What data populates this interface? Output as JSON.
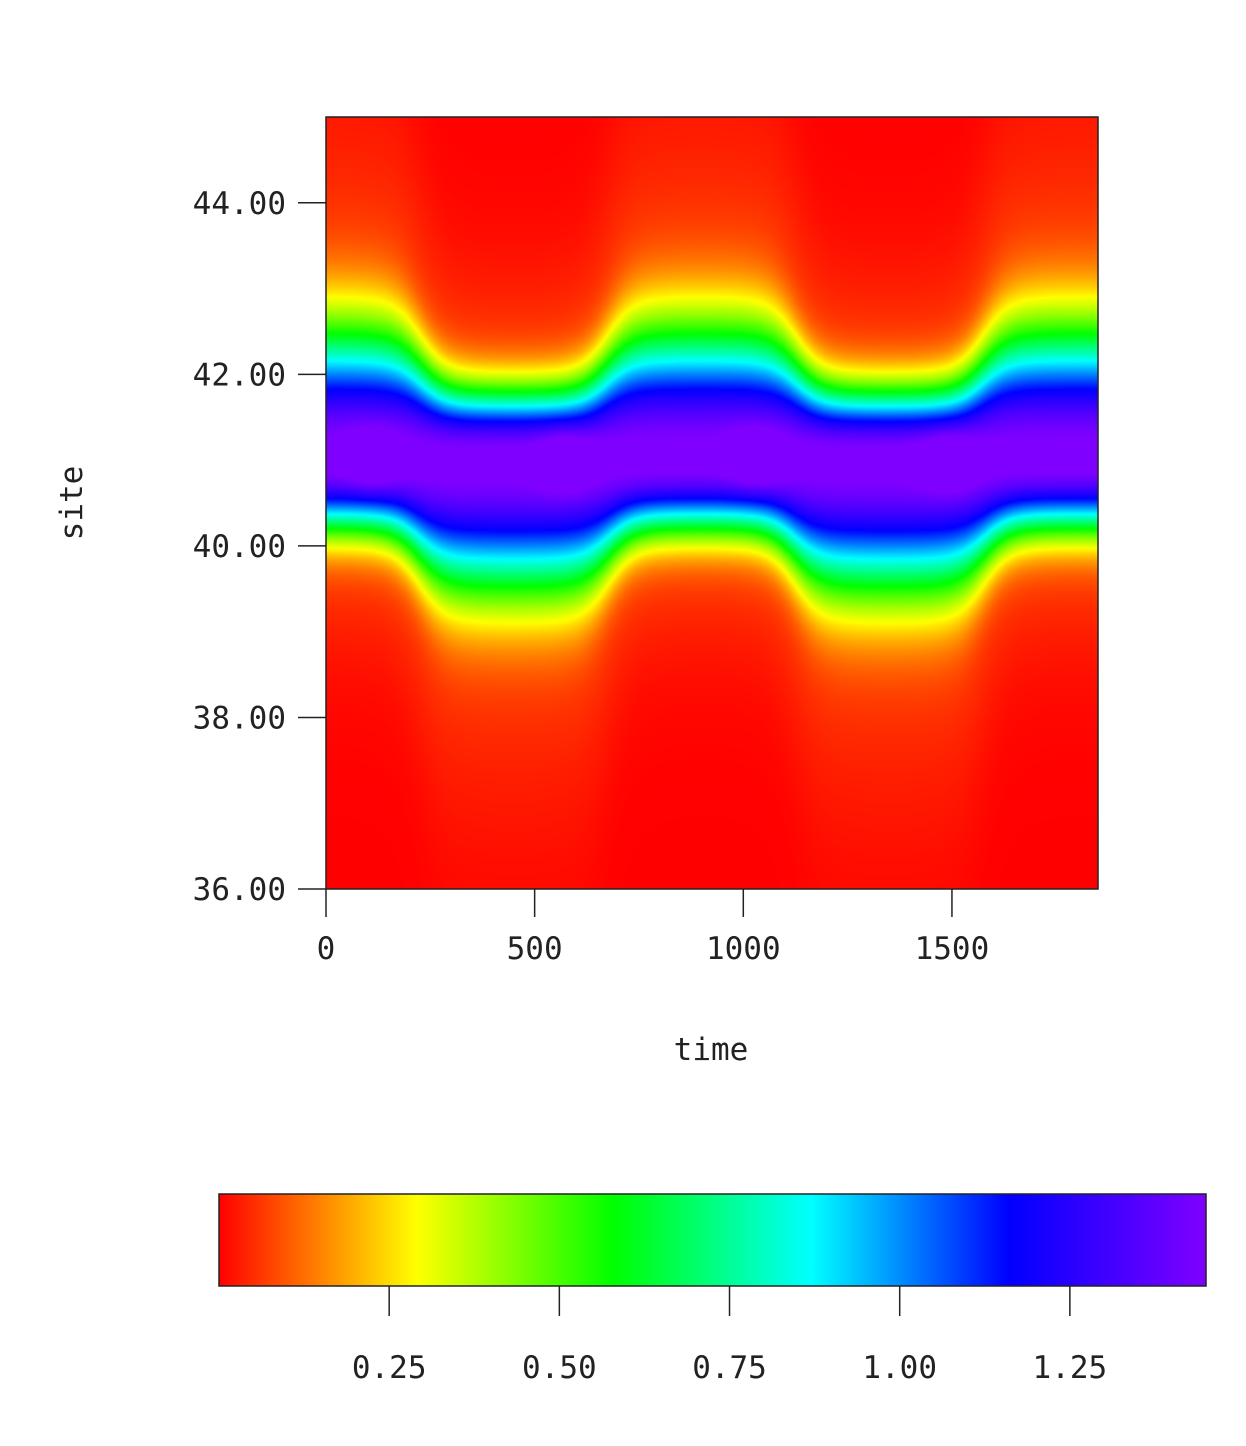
{
  "chart_data": {
    "type": "heatmap",
    "title": "",
    "xlabel": "time",
    "ylabel": "site",
    "xlim": [
      0,
      1850
    ],
    "ylim": [
      36,
      45
    ],
    "x_ticks": [
      "0",
      "500",
      "1000",
      "1500"
    ],
    "x_tick_values": [
      0,
      500,
      1000,
      1500
    ],
    "y_ticks": [
      "36.00",
      "38.00",
      "40.00",
      "42.00",
      "44.00"
    ],
    "y_tick_values": [
      36,
      38,
      40,
      42,
      44
    ],
    "colorbar": {
      "orientation": "horizontal",
      "range": [
        0.0,
        1.45
      ],
      "ticks": [
        "0.25",
        "0.50",
        "0.75",
        "1.00",
        "1.25"
      ],
      "tick_values": [
        0.25,
        0.5,
        0.75,
        1.0,
        1.25
      ],
      "colormap": [
        "#ff0000",
        "#ffff00",
        "#00ff00",
        "#00ffff",
        "#0000ff",
        "#8000ff"
      ]
    },
    "field": {
      "description_center_site": 41.0,
      "oscillation_amplitude_sites": 0.4,
      "oscillation_period_time": 900,
      "dark_peaks_time": [
        110,
        570,
        1030,
        1490
      ],
      "peak_value": 1.35,
      "background_value": 0.0
    },
    "grid": false
  }
}
